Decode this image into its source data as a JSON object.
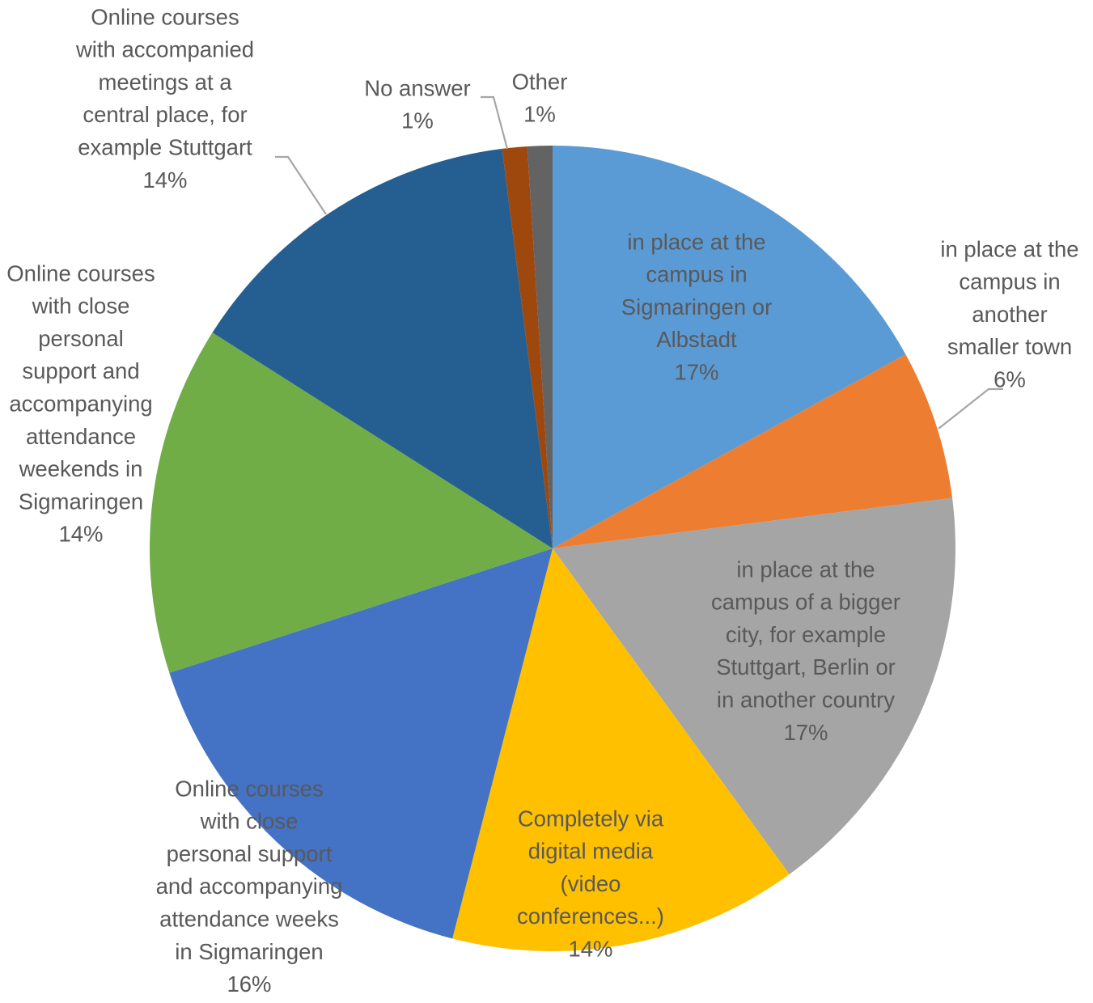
{
  "chart_data": {
    "type": "pie",
    "title": "",
    "slices": [
      {
        "label": "in place at the campus in Sigmaringen or Albstadt",
        "value": 17,
        "value_label": "17%",
        "color": "#5b9bd5"
      },
      {
        "label": "in place at the campus in another smaller town",
        "value": 6,
        "value_label": "6%",
        "color": "#ed7d31"
      },
      {
        "label": "in place at the campus of a bigger city, for example Stuttgart, Berlin or in another country",
        "value": 17,
        "value_label": "17%",
        "color": "#a5a5a5"
      },
      {
        "label": "Completely via digital media (video conferences...)",
        "value": 14,
        "value_label": "14%",
        "color": "#ffc000"
      },
      {
        "label": "Online courses with close personal support and accompanying attendance weeks in Sigmaringen",
        "value": 16,
        "value_label": "16%",
        "color": "#4472c4"
      },
      {
        "label": "Online courses with close personal support and accompanying attendance weekends in Sigmaringen",
        "value": 14,
        "value_label": "14%",
        "color": "#70ad47"
      },
      {
        "label": "Online courses with accompanied meetings at a central place, for example Stuttgart",
        "value": 14,
        "value_label": "14%",
        "color": "#255e91"
      },
      {
        "label": "No answer",
        "value": 1,
        "value_label": "1%",
        "color": "#9e480e"
      },
      {
        "label": "Other",
        "value": 1,
        "value_label": "1%",
        "color": "#636363"
      }
    ]
  }
}
